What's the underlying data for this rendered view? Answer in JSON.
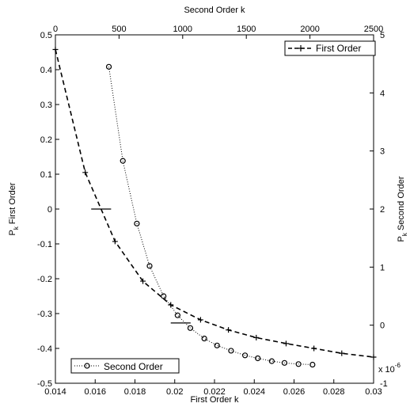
{
  "chart_data": {
    "type": "line",
    "x_bottom": {
      "label": "First Order k",
      "range": [
        0.014,
        0.03
      ],
      "ticks": [
        "0.014",
        "0.016",
        "0.018",
        "0.02",
        "0.022",
        "0.024",
        "0.026",
        "0.028",
        "0.03"
      ],
      "tick_values": [
        0.014,
        0.016,
        0.018,
        0.02,
        0.022,
        0.024,
        0.026,
        0.028,
        0.03
      ]
    },
    "x_top": {
      "label": "Second Order k",
      "range": [
        0,
        2500
      ],
      "ticks": [
        "0",
        "500",
        "1000",
        "1500",
        "2000",
        "2500"
      ],
      "tick_values": [
        0,
        500,
        1000,
        1500,
        2000,
        2500
      ]
    },
    "y_left": {
      "label": "P_k First Order",
      "label_main": "P",
      "label_sub": "k",
      "label_rest": " First Order",
      "range": [
        -0.5,
        0.5
      ],
      "ticks": [
        "0.5",
        "0.4",
        "0.3",
        "0.2",
        "0.1",
        "0",
        "-0.1",
        "-0.2",
        "-0.3",
        "-0.4",
        "-0.5"
      ],
      "tick_values": [
        0.5,
        0.4,
        0.3,
        0.2,
        0.1,
        0,
        -0.1,
        -0.2,
        -0.3,
        -0.4,
        -0.5
      ]
    },
    "y_right": {
      "label": "P_k Second Order",
      "label_main": "P",
      "label_sub": "k",
      "label_rest": " Second Order",
      "range": [
        -1,
        5
      ],
      "ticks": [
        "5",
        "4",
        "3",
        "2",
        "1",
        "0",
        "-1"
      ],
      "tick_values": [
        5,
        4,
        3,
        2,
        1,
        0,
        -1
      ],
      "exponent_base": "x 10",
      "exponent": "-6"
    },
    "series": [
      {
        "name": "First Order",
        "axis": "bottom-left",
        "style": "dashed",
        "marker": "+",
        "color": "#000000",
        "x": [
          0.014,
          0.0155,
          0.017,
          0.0184,
          0.0198,
          0.0213,
          0.0227,
          0.0241,
          0.0256,
          0.027,
          0.0284,
          0.03
        ],
        "y": [
          0.458,
          0.105,
          -0.093,
          -0.207,
          -0.275,
          -0.318,
          -0.347,
          -0.369,
          -0.386,
          -0.4,
          -0.414,
          -0.425
        ]
      },
      {
        "name": "Second Order",
        "axis": "top-right",
        "style": "dotted",
        "marker": "o",
        "color": "#000000",
        "x": [
          420,
          530,
          640,
          740,
          850,
          960,
          1060,
          1170,
          1270,
          1380,
          1490,
          1590,
          1700,
          1800,
          1910,
          2020
        ],
        "y": [
          4.45,
          2.83,
          1.75,
          1.02,
          0.5,
          0.17,
          -0.05,
          -0.23,
          -0.35,
          -0.44,
          -0.52,
          -0.57,
          -0.62,
          -0.65,
          -0.67,
          -0.68
        ]
      }
    ],
    "annotations": [
      {
        "axis": "bottom-left",
        "from": [
          0.0158,
          0
        ],
        "to": [
          0.0168,
          0
        ]
      },
      {
        "axis": "bottom-left",
        "from": [
          0.0198,
          -0.327
        ],
        "to": [
          0.0208,
          -0.327
        ]
      }
    ],
    "legends": [
      {
        "series": "First Order",
        "placement": "top-right"
      },
      {
        "series": "Second Order",
        "placement": "bottom-left"
      }
    ],
    "grid": false
  }
}
